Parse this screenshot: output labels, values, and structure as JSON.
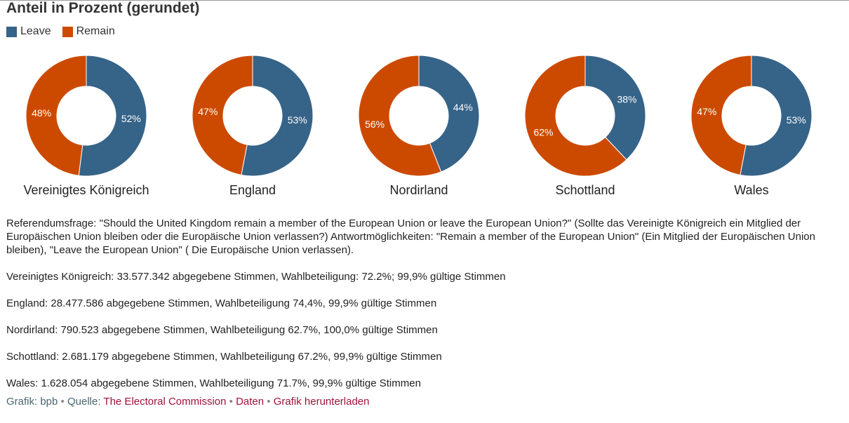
{
  "title": "Anteil in Prozent (gerundet)",
  "colors": {
    "leave": "#366388",
    "remain": "#cc4a00"
  },
  "legend": [
    {
      "label": "Leave",
      "color": "#366388"
    },
    {
      "label": "Remain",
      "color": "#cc4a00"
    }
  ],
  "chart_data": {
    "type": "pie",
    "variant": "donut",
    "title": "Anteil in Prozent (gerundet)",
    "series_names": [
      "Leave",
      "Remain"
    ],
    "charts": [
      {
        "name": "Vereinigtes Königreich",
        "leave": 52,
        "remain": 48
      },
      {
        "name": "England",
        "leave": 53,
        "remain": 47
      },
      {
        "name": "Nordirland",
        "leave": 44,
        "remain": 56
      },
      {
        "name": "Schottland",
        "leave": 38,
        "remain": 62
      },
      {
        "name": "Wales",
        "leave": 53,
        "remain": 47
      }
    ]
  },
  "description": "Referendumsfrage: \"Should the United Kingdom remain a member of the European Union or leave the European Union?\" (Sollte das Vereinigte Königreich ein Mitglied der Europäischen Union bleiben oder die Europäische Union verlassen?) Antwortmöglichkeiten: \"Remain a member of the European Union\" (Ein Mitglied der Europäischen Union bleiben), \"Leave the European Union\" ( Die Europäische Union verlassen).",
  "stats": [
    "Vereinigtes Königreich: 33.577.342 abgegebene Stimmen, Wahlbeteiligung: 72.2%; 99,9% gültige Stimmen",
    "England: 28.477.586 abgegebene Stimmen, Wahlbeteiligung 74,4%, 99,9% gültige Stimmen",
    "Nordirland: 790.523 abgegebene Stimmen, Wahlbeteiligung 62.7%, 100,0% gültige Stimmen",
    "Schottland: 2.681.179 abgegebene Stimmen, Wahlbeteiligung 67.2%, 99,9% gültige Stimmen",
    "Wales: 1.628.054 abgegebene Stimmen, Wahlbeteiligung 71.7%, 99,9% gültige Stimmen"
  ],
  "footer": {
    "credit": "Grafik: bpb",
    "source_prefix": "Quelle:",
    "source_link": "The Electoral Commission",
    "data_link": "Daten",
    "download_link": "Grafik herunterladen",
    "separator": "•"
  }
}
